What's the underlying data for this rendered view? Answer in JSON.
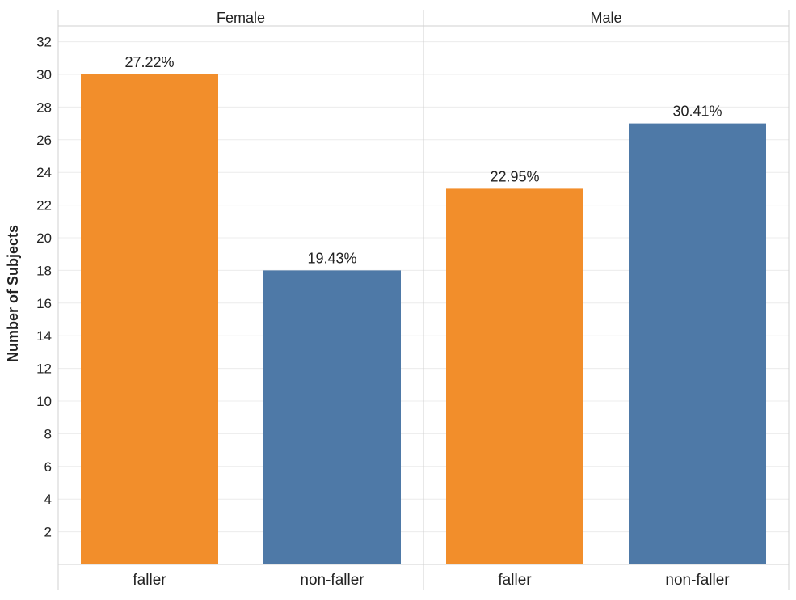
{
  "chart_data": {
    "type": "bar",
    "ylabel": "Number of Subjects",
    "ylim": [
      0,
      33
    ],
    "yticks": [
      2,
      4,
      6,
      8,
      10,
      12,
      14,
      16,
      18,
      20,
      22,
      24,
      26,
      28,
      30,
      32
    ],
    "grid": true,
    "categories": [
      "faller",
      "non-faller"
    ],
    "colors": {
      "faller": "#F28E2B",
      "non-faller": "#4E79A7"
    },
    "panels": [
      {
        "label": "Female",
        "bars": [
          {
            "category": "faller",
            "value": 30,
            "label": "27.22%"
          },
          {
            "category": "non-faller",
            "value": 18,
            "label": "19.43%"
          }
        ]
      },
      {
        "label": "Male",
        "bars": [
          {
            "category": "faller",
            "value": 23,
            "label": "22.95%"
          },
          {
            "category": "non-faller",
            "value": 27,
            "label": "30.41%"
          }
        ]
      }
    ]
  }
}
